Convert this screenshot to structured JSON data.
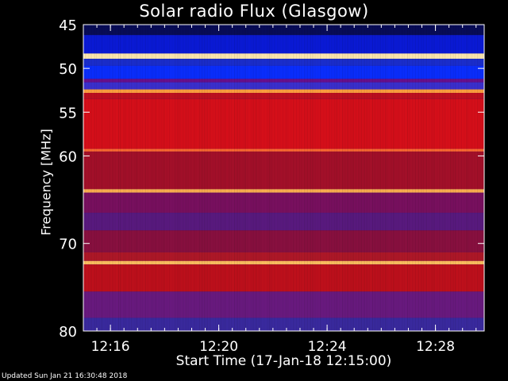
{
  "chart_data": {
    "type": "heatmap",
    "title": "Solar radio Flux (Glasgow)",
    "xlabel": "Start Time (17-Jan-18 12:15:00)",
    "ylabel": "Frequency [MHz]",
    "x_ticks": [
      "12:16",
      "12:20",
      "12:24",
      "12:28"
    ],
    "x_tick_minutes": [
      1,
      5,
      9,
      13
    ],
    "xlim_minutes": [
      0,
      14.8
    ],
    "y_ticks": [
      45,
      50,
      55,
      60,
      70,
      80
    ],
    "ylim": [
      45,
      80
    ],
    "frequency_bands": [
      {
        "from": 45.0,
        "to": 46.2,
        "color": "#080c58"
      },
      {
        "from": 46.2,
        "to": 48.3,
        "color": "#0a1ad8"
      },
      {
        "from": 48.3,
        "to": 48.9,
        "color": "#ffe9b0"
      },
      {
        "from": 48.9,
        "to": 49.7,
        "color": "#1b2ecf"
      },
      {
        "from": 49.7,
        "to": 51.2,
        "color": "#0a2eff"
      },
      {
        "from": 51.2,
        "to": 51.6,
        "color": "#6b1090"
      },
      {
        "from": 51.6,
        "to": 52.4,
        "color": "#3b30d0"
      },
      {
        "from": 52.4,
        "to": 52.8,
        "color": "#ffa040"
      },
      {
        "from": 52.8,
        "to": 53.5,
        "color": "#c01020"
      },
      {
        "from": 53.5,
        "to": 59.2,
        "color": "#d80f1a"
      },
      {
        "from": 59.2,
        "to": 59.5,
        "color": "#ff6a30"
      },
      {
        "from": 59.5,
        "to": 63.8,
        "color": "#a5102a"
      },
      {
        "from": 63.8,
        "to": 64.2,
        "color": "#ffb050"
      },
      {
        "from": 64.2,
        "to": 66.5,
        "color": "#7a1060"
      },
      {
        "from": 66.5,
        "to": 68.5,
        "color": "#5a1a80"
      },
      {
        "from": 68.5,
        "to": 71.0,
        "color": "#8a1040"
      },
      {
        "from": 71.0,
        "to": 72.0,
        "color": "#b01828"
      },
      {
        "from": 72.0,
        "to": 72.4,
        "color": "#ffc060"
      },
      {
        "from": 72.4,
        "to": 75.5,
        "color": "#c0101c"
      },
      {
        "from": 75.5,
        "to": 78.5,
        "color": "#6a1a80"
      },
      {
        "from": 78.5,
        "to": 80.0,
        "color": "#3a2aa0"
      }
    ],
    "colors": {
      "background": "#000000",
      "text": "#ffffff"
    }
  },
  "footer": {
    "updated": "Updated Sun Jan 21 16:30:48 2018"
  }
}
